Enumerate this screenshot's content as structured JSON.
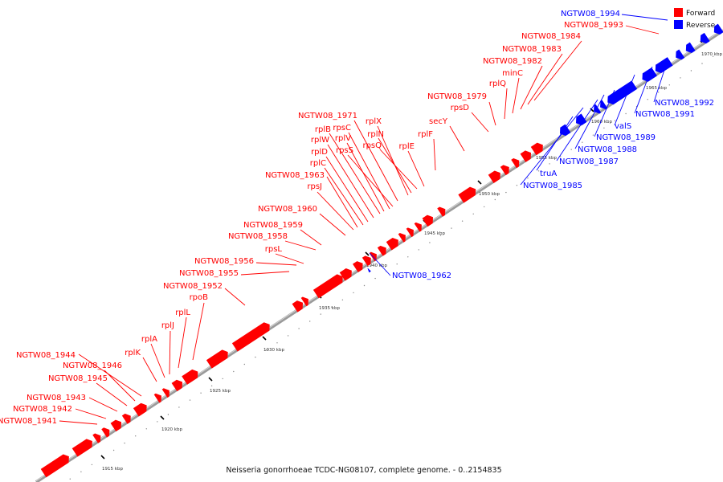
{
  "caption": "Neisseria gonorrhoeae TCDC-NG08107, complete genome. - 0..2154835",
  "legend": [
    {
      "label": "Forward",
      "color": "#ff0000"
    },
    {
      "label": "Reverse",
      "color": "#0000ff"
    }
  ],
  "colors": {
    "forward": "#ff0000",
    "reverse": "#0000ff",
    "track": "#9a9a9a"
  },
  "ticks": [
    "1915 kbp",
    "1920 kbp",
    "1925 kbp",
    "1930 kbp",
    "1935 kbp",
    "1940 kbp",
    "1945 kbp",
    "1950 kbp",
    "1955 kbp",
    "1960 kbp",
    "1965 kbp",
    "1970 kbp"
  ],
  "genes": [
    {
      "label": "NGTW08_1941",
      "strand": "forward"
    },
    {
      "label": "NGTW08_1942",
      "strand": "forward"
    },
    {
      "label": "NGTW08_1943",
      "strand": "forward"
    },
    {
      "label": "NGTW08_1945",
      "strand": "forward"
    },
    {
      "label": "NGTW08_1946",
      "strand": "forward"
    },
    {
      "label": "NGTW08_1944",
      "strand": "forward"
    },
    {
      "label": "rplK",
      "strand": "forward"
    },
    {
      "label": "rplA",
      "strand": "forward"
    },
    {
      "label": "rplJ",
      "strand": "forward"
    },
    {
      "label": "rplL",
      "strand": "forward"
    },
    {
      "label": "rpoB",
      "strand": "forward"
    },
    {
      "label": "NGTW08_1952",
      "strand": "forward"
    },
    {
      "label": "NGTW08_1955",
      "strand": "forward"
    },
    {
      "label": "NGTW08_1956",
      "strand": "forward"
    },
    {
      "label": "rpsL",
      "strand": "forward"
    },
    {
      "label": "NGTW08_1958",
      "strand": "forward"
    },
    {
      "label": "NGTW08_1959",
      "strand": "forward"
    },
    {
      "label": "NGTW08_1960",
      "strand": "forward"
    },
    {
      "label": "rpsJ",
      "strand": "forward"
    },
    {
      "label": "NGTW08_1963",
      "strand": "forward"
    },
    {
      "label": "rplC",
      "strand": "forward"
    },
    {
      "label": "rplD",
      "strand": "forward"
    },
    {
      "label": "rplW",
      "strand": "forward"
    },
    {
      "label": "rplB",
      "strand": "forward"
    },
    {
      "label": "rpsS",
      "strand": "forward"
    },
    {
      "label": "rplV",
      "strand": "forward"
    },
    {
      "label": "rpsC",
      "strand": "forward"
    },
    {
      "label": "NGTW08_1971",
      "strand": "forward"
    },
    {
      "label": "rplX",
      "strand": "forward"
    },
    {
      "label": "rplN",
      "strand": "forward"
    },
    {
      "label": "rpsQ",
      "strand": "forward"
    },
    {
      "label": "rplE",
      "strand": "forward"
    },
    {
      "label": "rplF",
      "strand": "forward"
    },
    {
      "label": "secY",
      "strand": "forward"
    },
    {
      "label": "rpsD",
      "strand": "forward"
    },
    {
      "label": "NGTW08_1979",
      "strand": "forward"
    },
    {
      "label": "rplQ",
      "strand": "forward"
    },
    {
      "label": "minC",
      "strand": "forward"
    },
    {
      "label": "NGTW08_1982",
      "strand": "forward"
    },
    {
      "label": "NGTW08_1983",
      "strand": "forward"
    },
    {
      "label": "NGTW08_1984",
      "strand": "forward"
    },
    {
      "label": "NGTW08_1993",
      "strand": "forward"
    },
    {
      "label": "NGTW08_1994",
      "strand": "reverse"
    },
    {
      "label": "NGTW08_1962",
      "strand": "reverse"
    },
    {
      "label": "truA",
      "strand": "reverse"
    },
    {
      "label": "NGTW08_1985",
      "strand": "reverse"
    },
    {
      "label": "NGTW08_1987",
      "strand": "reverse"
    },
    {
      "label": "NGTW08_1988",
      "strand": "reverse"
    },
    {
      "label": "NGTW08_1989",
      "strand": "reverse"
    },
    {
      "label": "valS",
      "strand": "reverse"
    },
    {
      "label": "NGTW08_1991",
      "strand": "reverse"
    },
    {
      "label": "NGTW08_1992",
      "strand": "reverse"
    }
  ]
}
